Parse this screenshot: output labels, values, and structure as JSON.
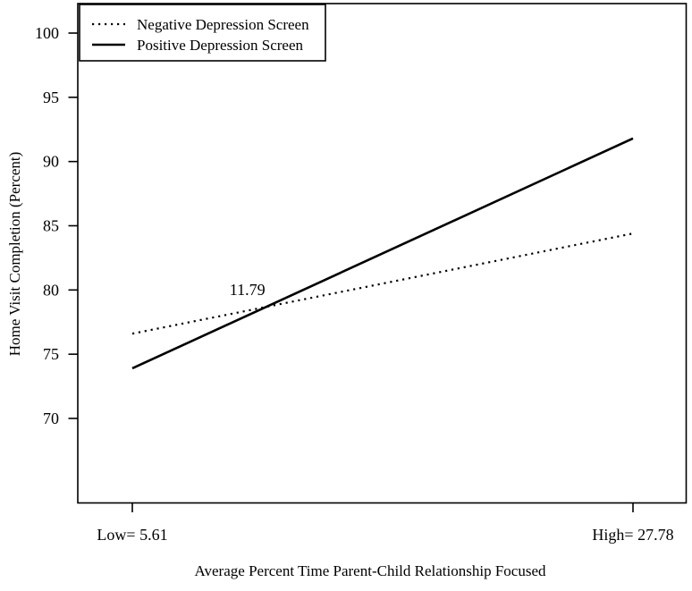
{
  "chart_data": {
    "type": "line",
    "title": "",
    "xlabel": "Average Percent Time Parent-Child Relationship Focused",
    "ylabel": "Home Visit Completion (Percent)",
    "x_axis": {
      "tick_labels": [
        "Low= 5.61",
        "High= 27.78"
      ],
      "tick_values": [
        5.61,
        27.78
      ],
      "range": [
        3.2,
        30.2
      ]
    },
    "y_axis": {
      "ticks": [
        70,
        75,
        80,
        85,
        90,
        95,
        100
      ],
      "range": [
        63.4,
        102.3
      ]
    },
    "series": [
      {
        "name": "Negative Depression Screen",
        "line_style": "dotted",
        "x": [
          5.61,
          27.78
        ],
        "values": [
          76.6,
          84.4
        ]
      },
      {
        "name": "Positive Depression Screen",
        "line_style": "solid",
        "x": [
          5.61,
          27.78
        ],
        "values": [
          73.9,
          91.8
        ]
      }
    ],
    "annotation": {
      "text": "11.79"
    },
    "legend": {
      "position": "top-left",
      "entries": [
        "Negative Depression Screen",
        "Positive Depression Screen"
      ]
    },
    "grid": false,
    "colors": {
      "foreground": "#000000",
      "background": "#ffffff"
    }
  }
}
